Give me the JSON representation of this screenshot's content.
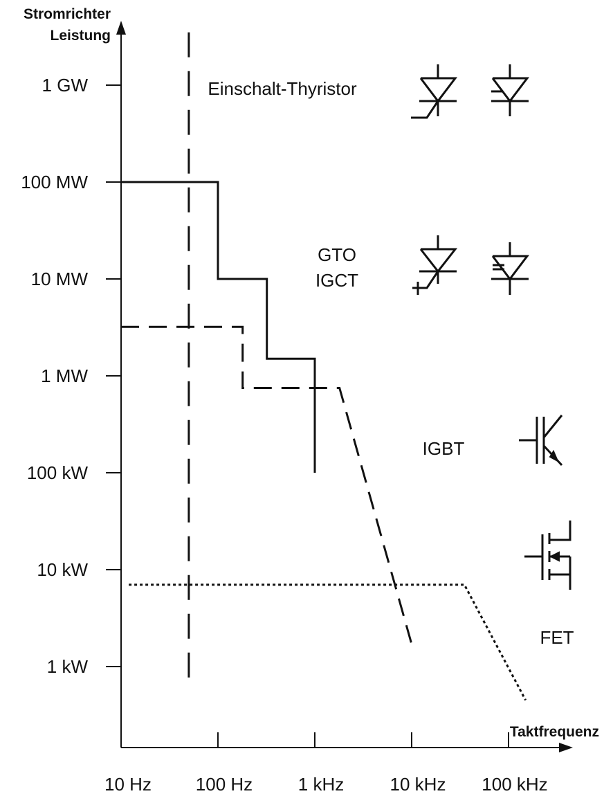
{
  "chart_data": {
    "type": "line",
    "xlabel": "Taktfrequenz",
    "ylabel_lines": [
      "Stromrichter",
      "Leistung"
    ],
    "x_scale": "log",
    "y_scale": "log",
    "x_ticks": [
      {
        "value": 100,
        "label": "100 Hz"
      },
      {
        "value": 1000,
        "label": "1 kHz"
      },
      {
        "value": 10000,
        "label": "10 kHz"
      },
      {
        "value": 100000,
        "label": "100 kHz"
      }
    ],
    "x_tick_labels_extra": [
      {
        "value": 10,
        "label": "10 Hz"
      }
    ],
    "y_ticks": [
      {
        "value": 1000,
        "label": "1 kW"
      },
      {
        "value": 10000,
        "label": "10 kW"
      },
      {
        "value": 100000,
        "label": "100 kW"
      },
      {
        "value": 1000000,
        "label": "1 MW"
      },
      {
        "value": 10000000,
        "label": "10 MW"
      },
      {
        "value": 100000000,
        "label": "100 MW"
      },
      {
        "value": 1000000000,
        "label": "1 GW"
      }
    ],
    "xlim": [
      10,
      500000
    ],
    "ylim": [
      100,
      10000000000
    ],
    "series": [
      {
        "id": "einschalt-thyristor",
        "label": "Einschalt-Thyristor",
        "style": "long-dash-vertical",
        "points": [
          [
            50,
            3500000000
          ],
          [
            50,
            700
          ]
        ]
      },
      {
        "id": "gto-igct",
        "label": "GTO IGCT",
        "style": "solid",
        "points": [
          [
            10,
            100000000
          ],
          [
            100,
            100000000
          ],
          [
            100,
            10000000
          ],
          [
            320,
            10000000
          ],
          [
            320,
            1500000
          ],
          [
            1000,
            1500000
          ],
          [
            1000,
            100000
          ]
        ]
      },
      {
        "id": "igbt",
        "label": "IGBT",
        "style": "dashed",
        "points": [
          [
            10,
            3200000
          ],
          [
            180,
            3200000
          ],
          [
            180,
            750000
          ],
          [
            1800,
            750000
          ],
          [
            10000,
            1700
          ]
        ]
      },
      {
        "id": "fet",
        "label": "FET",
        "style": "dotted",
        "points": [
          [
            12,
            7000
          ],
          [
            35000,
            7000
          ],
          [
            150000,
            450
          ]
        ]
      }
    ],
    "annotations": [
      {
        "id": "einschalt",
        "lines": [
          "Einschalt-Thyristor"
        ]
      },
      {
        "id": "gto",
        "lines": [
          "GTO",
          "IGCT"
        ]
      },
      {
        "id": "igbt",
        "lines": [
          "IGBT"
        ]
      },
      {
        "id": "fet",
        "lines": [
          "FET"
        ]
      }
    ],
    "grid": false,
    "legend": "none"
  }
}
